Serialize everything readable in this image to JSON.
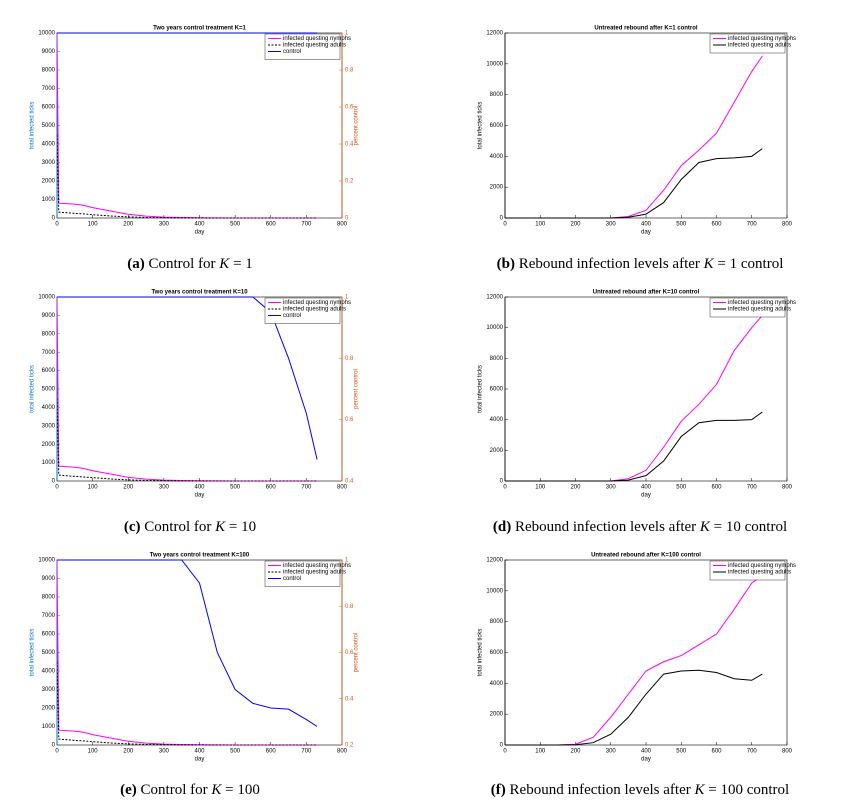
{
  "chart_data": [
    {
      "type": "line",
      "title": "Two years control treatment K=1",
      "xlabel": "day",
      "ylabel": "total infected ticks",
      "y2label": "percent control",
      "x": [
        0,
        5,
        25,
        50,
        75,
        100,
        150,
        200,
        250,
        300,
        350,
        400,
        450,
        500,
        550,
        600,
        650,
        700,
        730
      ],
      "series": [
        {
          "name": "infected questing nymphs",
          "color": "#ff00ff",
          "values": [
            10000,
            800,
            780,
            750,
            680,
            560,
            380,
            200,
            100,
            50,
            25,
            12,
            6,
            3,
            2,
            1,
            1,
            1,
            1
          ]
        },
        {
          "name": "infected questing adults",
          "color": "#000000",
          "dash": true,
          "values": [
            4500,
            320,
            290,
            250,
            220,
            180,
            110,
            60,
            30,
            15,
            8,
            4,
            2,
            1,
            1,
            1,
            1,
            1,
            1
          ]
        },
        {
          "name": "control",
          "color": "#0000ff",
          "axis": "y2",
          "values": [
            1,
            1,
            1,
            1,
            1,
            1,
            1,
            1,
            1,
            1,
            1,
            1,
            1,
            1,
            1,
            1,
            1,
            1,
            1
          ]
        }
      ],
      "xlim": [
        0,
        800
      ],
      "xticks": [
        0,
        100,
        200,
        300,
        400,
        500,
        600,
        700,
        800
      ],
      "ylim": [
        0,
        10000
      ],
      "yticks": [
        0,
        1000,
        2000,
        3000,
        4000,
        5000,
        6000,
        7000,
        8000,
        9000,
        10000
      ],
      "y2lim": [
        0,
        1
      ],
      "y2ticks": [
        0,
        0.2,
        0.4,
        0.6,
        0.8,
        1
      ]
    },
    {
      "type": "line",
      "title": "Untreated rebound after K=1 control",
      "xlabel": "day",
      "ylabel": "total infected ticks",
      "x": [
        0,
        5,
        25,
        50,
        75,
        100,
        150,
        200,
        250,
        300,
        350,
        400,
        450,
        500,
        550,
        600,
        650,
        700,
        730
      ],
      "series": [
        {
          "name": "infected questing nymphs",
          "color": "#ff00ff",
          "values": [
            0,
            0,
            0,
            0,
            0,
            0,
            0,
            0,
            0,
            0,
            100,
            500,
            1800,
            3400,
            4400,
            5500,
            7500,
            9500,
            10500
          ]
        },
        {
          "name": "infected questing adults",
          "color": "#000000",
          "values": [
            0,
            0,
            0,
            0,
            0,
            0,
            0,
            0,
            0,
            0,
            50,
            250,
            1000,
            2500,
            3600,
            3850,
            3900,
            4000,
            4500
          ]
        }
      ],
      "xlim": [
        0,
        800
      ],
      "xticks": [
        0,
        100,
        200,
        300,
        400,
        500,
        600,
        700,
        800
      ],
      "ylim": [
        0,
        12000
      ],
      "yticks": [
        0,
        2000,
        4000,
        6000,
        8000,
        10000,
        12000
      ]
    },
    {
      "type": "line",
      "title": "Two years control treatment K=10",
      "xlabel": "day",
      "ylabel": "total infected ticks",
      "y2label": "percent control",
      "x": [
        0,
        5,
        25,
        50,
        75,
        100,
        150,
        200,
        250,
        300,
        350,
        400,
        450,
        500,
        550,
        600,
        650,
        700,
        730
      ],
      "series": [
        {
          "name": "infected questing nymphs",
          "color": "#ff00ff",
          "values": [
            10000,
            800,
            780,
            750,
            680,
            560,
            380,
            200,
            100,
            50,
            25,
            12,
            6,
            3,
            2,
            1,
            1,
            1,
            1
          ]
        },
        {
          "name": "infected questing adults",
          "color": "#000000",
          "dash": true,
          "values": [
            4500,
            320,
            290,
            250,
            220,
            180,
            110,
            60,
            30,
            15,
            8,
            4,
            2,
            1,
            1,
            1,
            1,
            1,
            1
          ]
        },
        {
          "name": "control",
          "color": "#0000ff",
          "axis": "y2",
          "values": [
            1,
            1,
            1,
            1,
            1,
            1,
            1,
            1,
            1,
            1,
            1,
            1,
            1,
            1,
            1,
            0.95,
            0.8,
            0.62,
            0.47
          ]
        }
      ],
      "xlim": [
        0,
        800
      ],
      "xticks": [
        0,
        100,
        200,
        300,
        400,
        500,
        600,
        700,
        800
      ],
      "ylim": [
        0,
        10000
      ],
      "yticks": [
        0,
        1000,
        2000,
        3000,
        4000,
        5000,
        6000,
        7000,
        8000,
        9000,
        10000
      ],
      "y2lim": [
        0.4,
        1
      ],
      "y2ticks": [
        0.4,
        0.6,
        0.8,
        1
      ]
    },
    {
      "type": "line",
      "title": "Untreated rebound after K=10 control",
      "xlabel": "day",
      "ylabel": "total infected ticks",
      "x": [
        0,
        5,
        25,
        50,
        75,
        100,
        150,
        200,
        250,
        300,
        350,
        400,
        450,
        500,
        550,
        600,
        650,
        700,
        730
      ],
      "series": [
        {
          "name": "infected questing nymphs",
          "color": "#ff00ff",
          "values": [
            0,
            0,
            0,
            0,
            0,
            0,
            0,
            0,
            0,
            0,
            150,
            700,
            2200,
            3900,
            5000,
            6300,
            8500,
            10000,
            10800
          ]
        },
        {
          "name": "infected questing adults",
          "color": "#000000",
          "values": [
            0,
            0,
            0,
            0,
            0,
            0,
            0,
            0,
            0,
            0,
            60,
            350,
            1300,
            2900,
            3800,
            3950,
            3950,
            4000,
            4500
          ]
        }
      ],
      "xlim": [
        0,
        800
      ],
      "xticks": [
        0,
        100,
        200,
        300,
        400,
        500,
        600,
        700,
        800
      ],
      "ylim": [
        0,
        12000
      ],
      "yticks": [
        0,
        2000,
        4000,
        6000,
        8000,
        10000,
        12000
      ]
    },
    {
      "type": "line",
      "title": "Two years control treatment K=100",
      "xlabel": "day",
      "ylabel": "total infected ticks",
      "y2label": "percent control",
      "x": [
        0,
        5,
        25,
        50,
        75,
        100,
        150,
        200,
        250,
        300,
        350,
        400,
        450,
        500,
        550,
        600,
        650,
        700,
        730
      ],
      "series": [
        {
          "name": "infected questing nymphs",
          "color": "#ff00ff",
          "values": [
            10000,
            800,
            780,
            750,
            680,
            560,
            380,
            200,
            100,
            50,
            25,
            12,
            6,
            3,
            2,
            1,
            1,
            1,
            1
          ]
        },
        {
          "name": "infected questing adults",
          "color": "#000000",
          "dash": true,
          "values": [
            4500,
            320,
            290,
            250,
            220,
            180,
            110,
            60,
            30,
            15,
            8,
            4,
            2,
            1,
            1,
            1,
            1,
            1,
            1
          ]
        },
        {
          "name": "control",
          "color": "#0000ff",
          "axis": "y2",
          "values": [
            1,
            1,
            1,
            1,
            1,
            1,
            1,
            1,
            1,
            1,
            1,
            0.9,
            0.6,
            0.44,
            0.38,
            0.36,
            0.355,
            0.31,
            0.28
          ]
        }
      ],
      "xlim": [
        0,
        800
      ],
      "xticks": [
        0,
        100,
        200,
        300,
        400,
        500,
        600,
        700,
        800
      ],
      "ylim": [
        0,
        10000
      ],
      "yticks": [
        0,
        1000,
        2000,
        3000,
        4000,
        5000,
        6000,
        7000,
        8000,
        9000,
        10000
      ],
      "y2lim": [
        0.2,
        1
      ],
      "y2ticks": [
        0.2,
        0.4,
        0.6,
        0.8,
        1
      ]
    },
    {
      "type": "line",
      "title": "Untreated rebound after K=100 control",
      "xlabel": "day",
      "ylabel": "total infected ticks",
      "x": [
        0,
        5,
        25,
        50,
        75,
        100,
        150,
        200,
        250,
        300,
        350,
        400,
        450,
        500,
        550,
        600,
        650,
        700,
        730
      ],
      "series": [
        {
          "name": "infected questing nymphs",
          "color": "#ff00ff",
          "values": [
            0,
            0,
            0,
            0,
            0,
            0,
            0,
            50,
            500,
            1800,
            3300,
            4800,
            5400,
            5800,
            6500,
            7200,
            8800,
            10500,
            11000
          ]
        },
        {
          "name": "infected questing adults",
          "color": "#000000",
          "values": [
            0,
            0,
            0,
            0,
            0,
            0,
            0,
            20,
            150,
            700,
            1800,
            3300,
            4600,
            4800,
            4850,
            4700,
            4300,
            4200,
            4600
          ]
        }
      ],
      "xlim": [
        0,
        800
      ],
      "xticks": [
        0,
        100,
        200,
        300,
        400,
        500,
        600,
        700,
        800
      ],
      "ylim": [
        0,
        12000
      ],
      "yticks": [
        0,
        2000,
        4000,
        6000,
        8000,
        10000,
        12000
      ]
    }
  ],
  "captions": [
    {
      "label": "(a)",
      "before": "Control for",
      "var": "K",
      "after": "= 1"
    },
    {
      "label": "(b)",
      "before": "Rebound infection levels after",
      "var": "K",
      "after": "= 1 control"
    },
    {
      "label": "(c)",
      "before": "Control for",
      "var": "K",
      "after": "= 10"
    },
    {
      "label": "(d)",
      "before": "Rebound infection levels after",
      "var": "K",
      "after": "= 10 control"
    },
    {
      "label": "(e)",
      "before": "Control for",
      "var": "K",
      "after": "= 100"
    },
    {
      "label": "(f)",
      "before": "Rebound infection levels after",
      "var": "K",
      "after": "= 100 control"
    }
  ]
}
